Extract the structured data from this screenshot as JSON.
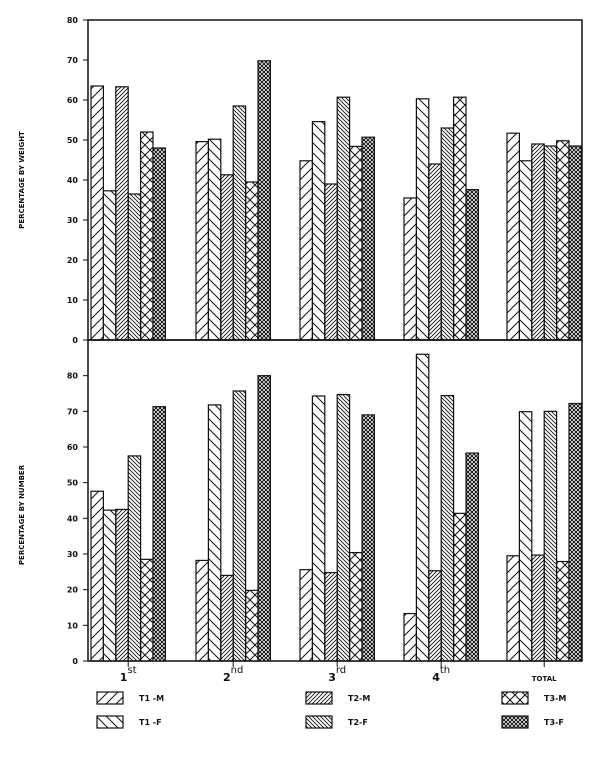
{
  "chart_data": [
    {
      "type": "bar",
      "ylabel": "PERCENTAGE BY WEIGHT",
      "ylim": [
        0,
        80
      ],
      "yticks": [
        "0",
        "10",
        "20",
        "30",
        "40",
        "50",
        "60",
        "70",
        "80"
      ],
      "categories": [
        "1st",
        "2nd",
        "3rd",
        "4th",
        "TOTAL"
      ],
      "series": [
        {
          "name": "T1 -M",
          "values": [
            63.5,
            49.6,
            44.8,
            35.5,
            51.7
          ]
        },
        {
          "name": "T1 -F",
          "values": [
            37.3,
            50.2,
            54.6,
            60.3,
            44.8
          ]
        },
        {
          "name": "T2-M",
          "values": [
            63.3,
            41.3,
            39.0,
            44.0,
            49.0
          ]
        },
        {
          "name": "T2-F",
          "values": [
            36.5,
            58.5,
            60.7,
            53.0,
            48.5
          ]
        },
        {
          "name": "T3-M",
          "values": [
            52.0,
            39.5,
            48.4,
            60.7,
            49.8
          ]
        },
        {
          "name": "T3-F",
          "values": [
            48.0,
            69.8,
            50.7,
            37.6,
            48.5
          ]
        }
      ]
    },
    {
      "type": "bar",
      "ylabel": "PERCENTAGE BY NUMBER",
      "ylim": [
        0,
        90
      ],
      "yticks": [
        "0",
        "10",
        "20",
        "30",
        "40",
        "50",
        "60",
        "70",
        "80"
      ],
      "categories": [
        "1st",
        "2nd",
        "3rd",
        "4th",
        "TOTAL"
      ],
      "category_labels": [
        {
          "base": "1",
          "sup": "st"
        },
        {
          "base": "2",
          "sup": "nd"
        },
        {
          "base": "3",
          "sup": "rd"
        },
        {
          "base": "4",
          "sup": "th"
        },
        {
          "base": "TOTAL",
          "sup": ""
        }
      ],
      "series": [
        {
          "name": "T1 -M",
          "values": [
            47.6,
            28.2,
            25.6,
            13.3,
            29.5
          ]
        },
        {
          "name": "T1 -F",
          "values": [
            42.3,
            71.8,
            74.3,
            86.0,
            69.9
          ]
        },
        {
          "name": "T2-M",
          "values": [
            42.5,
            24.0,
            24.8,
            25.3,
            29.7
          ]
        },
        {
          "name": "T2-F",
          "values": [
            57.5,
            75.7,
            74.7,
            74.4,
            70.0
          ]
        },
        {
          "name": "T3-M",
          "values": [
            28.5,
            19.8,
            30.4,
            41.4,
            27.9
          ]
        },
        {
          "name": "T3-F",
          "values": [
            71.3,
            80.0,
            69.0,
            58.3,
            72.2
          ]
        }
      ]
    }
  ],
  "legend": {
    "position": "bottom",
    "items": [
      {
        "label": "T1 -M",
        "pattern": "sparse-forward-hatch"
      },
      {
        "label": "T1 -F",
        "pattern": "sparse-back-hatch"
      },
      {
        "label": "T2-M",
        "pattern": "dense-forward-hatch"
      },
      {
        "label": "T2-F",
        "pattern": "dense-back-hatch"
      },
      {
        "label": "T3-M",
        "pattern": "sparse-crosshatch"
      },
      {
        "label": "T3-F",
        "pattern": "dense-crosshatch"
      }
    ]
  },
  "colors": {
    "ink": "#111111",
    "background": "#ffffff"
  }
}
